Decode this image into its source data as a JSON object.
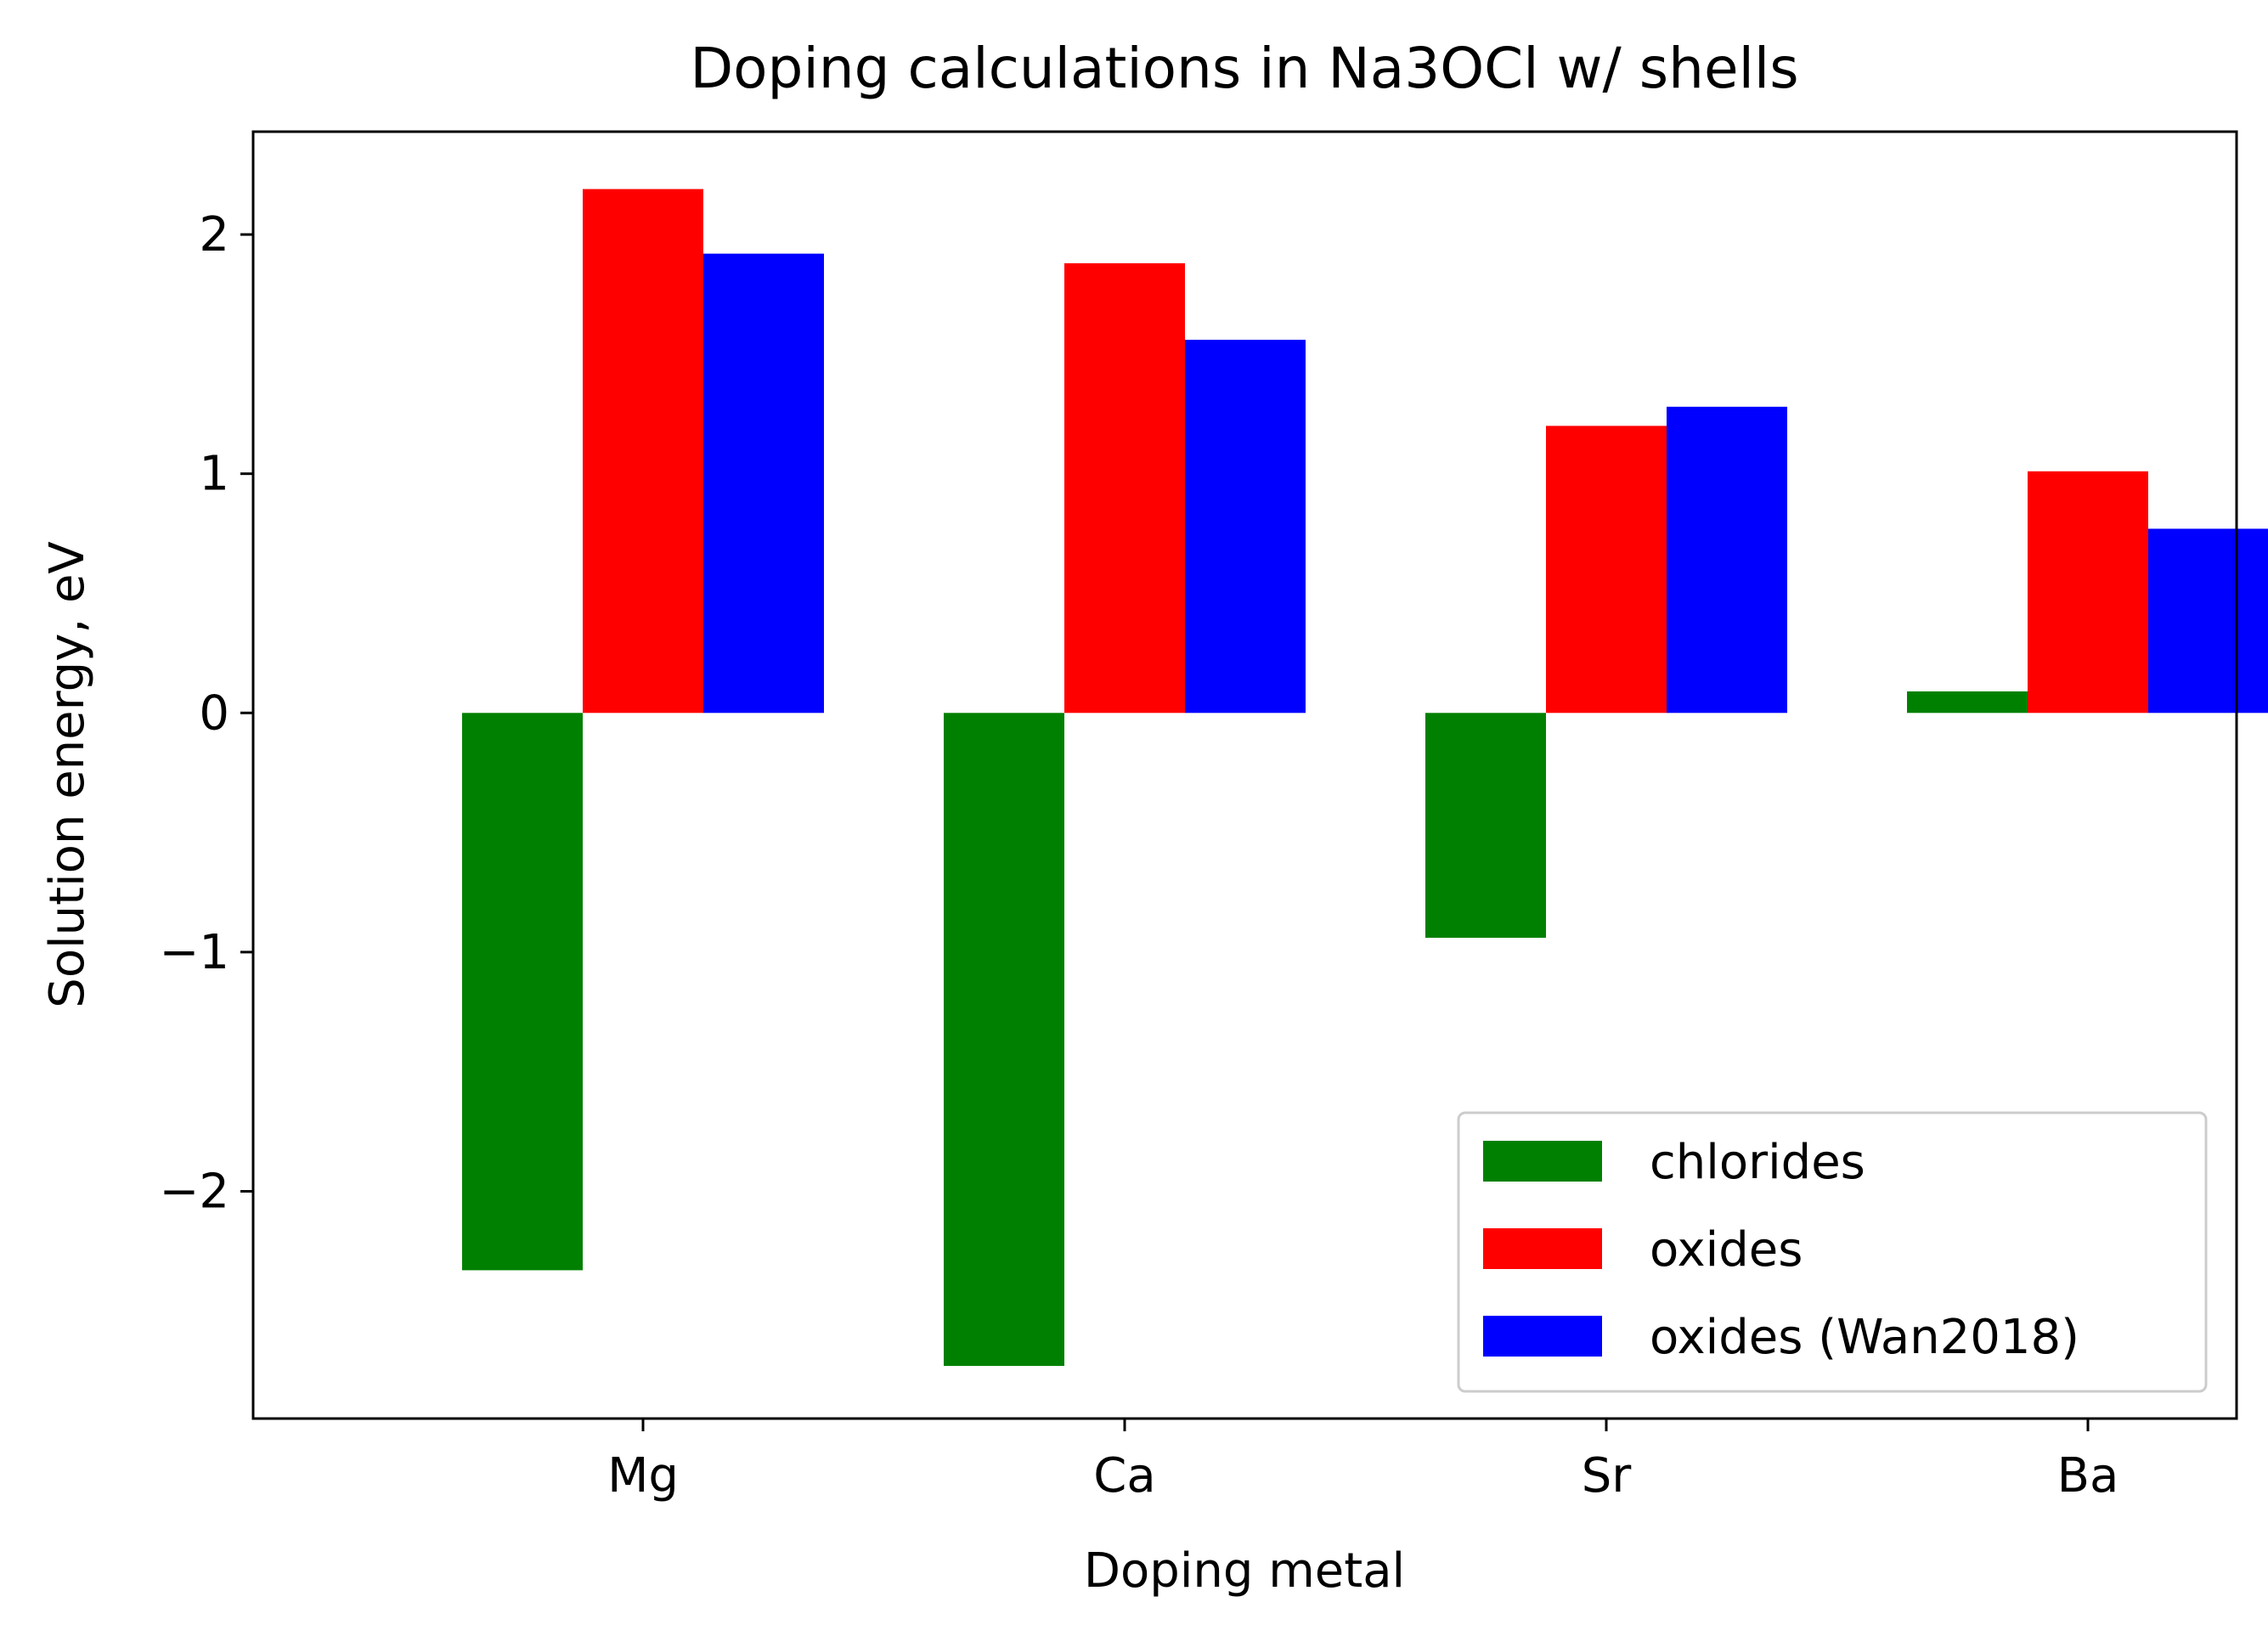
{
  "chart_data": {
    "type": "bar",
    "title": "Doping calculations in Na3OCl w/ shells",
    "xlabel": "Doping metal",
    "ylabel": "Solution energy, eV",
    "categories": [
      "Mg",
      "Ca",
      "Sr",
      "Ba"
    ],
    "ylim": [
      -2.95,
      2.43
    ],
    "yticks": [
      -2,
      -1,
      0,
      1,
      2
    ],
    "ytick_labels": [
      "−2",
      "−1",
      "0",
      "1",
      "2"
    ],
    "series": [
      {
        "name": "chlorides",
        "color": "#008000",
        "values": [
          -2.33,
          -2.73,
          -0.94,
          0.09
        ]
      },
      {
        "name": "oxides",
        "color": "#ff0000",
        "values": [
          2.19,
          1.88,
          1.2,
          1.01
        ]
      },
      {
        "name": "oxides (Wan2018)",
        "color": "#0000ff",
        "values": [
          1.92,
          1.56,
          1.28,
          0.77
        ]
      }
    ],
    "legend": {
      "position": "lower-right"
    },
    "grid": false
  }
}
